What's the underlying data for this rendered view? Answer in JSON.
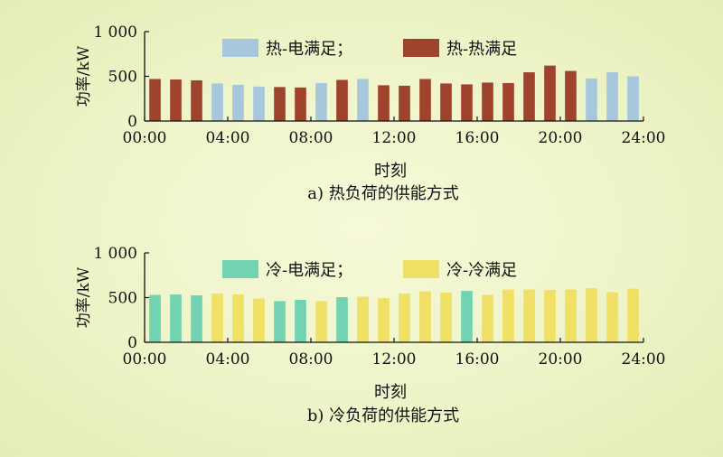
{
  "chart_data": [
    {
      "type": "bar",
      "title": "",
      "caption": "a) 热负荷的供能方式",
      "xlabel": "时刻",
      "ylabel": "功率/kW",
      "ylim": [
        0,
        1000
      ],
      "yticks": [
        "0",
        "500",
        "1 000"
      ],
      "xticks": [
        "00:00",
        "04:00",
        "08:00",
        "12:00",
        "16:00",
        "20:00",
        "24:00"
      ],
      "x_range_hours": [
        0,
        24
      ],
      "legend": "top-center",
      "series": [
        {
          "name": "热-电满足；",
          "color": "#a7c7dd"
        },
        {
          "name": "热-热满足",
          "color": "#a0432c"
        }
      ],
      "hours": [
        1,
        2,
        3,
        4,
        5,
        6,
        7,
        8,
        9,
        10,
        11,
        12,
        13,
        14,
        15,
        16,
        17,
        18,
        19,
        20,
        21,
        22,
        23,
        24
      ],
      "values": [
        470,
        465,
        455,
        420,
        405,
        385,
        380,
        375,
        425,
        460,
        470,
        400,
        395,
        470,
        420,
        410,
        430,
        425,
        545,
        620,
        560,
        475,
        545,
        500
      ],
      "series_index": [
        1,
        1,
        1,
        0,
        0,
        0,
        1,
        1,
        0,
        1,
        0,
        1,
        1,
        1,
        1,
        1,
        1,
        1,
        1,
        1,
        1,
        0,
        0,
        0
      ]
    },
    {
      "type": "bar",
      "title": "",
      "caption": "b) 冷负荷的供能方式",
      "xlabel": "时刻",
      "ylabel": "功率/kW",
      "ylim": [
        0,
        1000
      ],
      "yticks": [
        "0",
        "500",
        "1 000"
      ],
      "xticks": [
        "00:00",
        "04:00",
        "08:00",
        "12:00",
        "16:00",
        "20:00",
        "24:00"
      ],
      "x_range_hours": [
        0,
        24
      ],
      "legend": "top-center",
      "series": [
        {
          "name": "冷-电满足；",
          "color": "#72d3b3"
        },
        {
          "name": "冷-冷满足",
          "color": "#f0e066"
        }
      ],
      "hours": [
        1,
        2,
        3,
        4,
        5,
        6,
        7,
        8,
        9,
        10,
        11,
        12,
        13,
        14,
        15,
        16,
        17,
        18,
        19,
        20,
        21,
        22,
        23,
        24
      ],
      "values": [
        530,
        535,
        525,
        545,
        535,
        490,
        460,
        475,
        460,
        505,
        510,
        495,
        545,
        570,
        555,
        575,
        530,
        590,
        590,
        585,
        590,
        605,
        560,
        600
      ],
      "series_index": [
        0,
        0,
        0,
        1,
        1,
        1,
        0,
        0,
        1,
        0,
        1,
        1,
        1,
        1,
        1,
        0,
        1,
        1,
        1,
        1,
        1,
        1,
        1,
        1
      ]
    }
  ]
}
